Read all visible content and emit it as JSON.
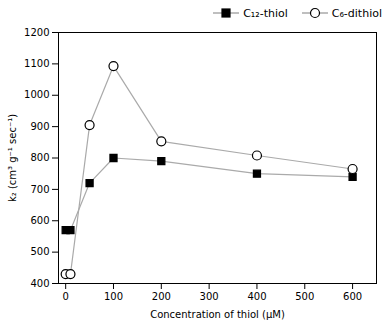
{
  "chart_data": {
    "type": "line",
    "x_label": "Concentration of thiol (μM)",
    "y_label": "k₂ (cm³ g⁻¹ sec⁻¹)",
    "series": [
      {
        "name": "C₁₂-thiol",
        "color": "#aaaaaa",
        "marker": "square",
        "x": [
          0,
          10,
          50,
          100,
          200,
          400,
          600
        ],
        "values": [
          570,
          570,
          720,
          800,
          790,
          750,
          740
        ]
      },
      {
        "name": "C₆-dithiol",
        "color": "#aaaaaa",
        "marker": "circle-open",
        "x": [
          0,
          10,
          50,
          100,
          200,
          400,
          600
        ],
        "values": [
          430,
          430,
          905,
          1093,
          853,
          808,
          765
        ]
      }
    ],
    "xlim": [
      -15,
      650
    ],
    "ylim": [
      400,
      1200
    ],
    "xticks": [
      0,
      100,
      200,
      300,
      400,
      500,
      600
    ],
    "yticks": [
      400,
      500,
      600,
      700,
      800,
      900,
      1000,
      1100,
      1200
    ],
    "grid": false,
    "legend": "upper right"
  }
}
